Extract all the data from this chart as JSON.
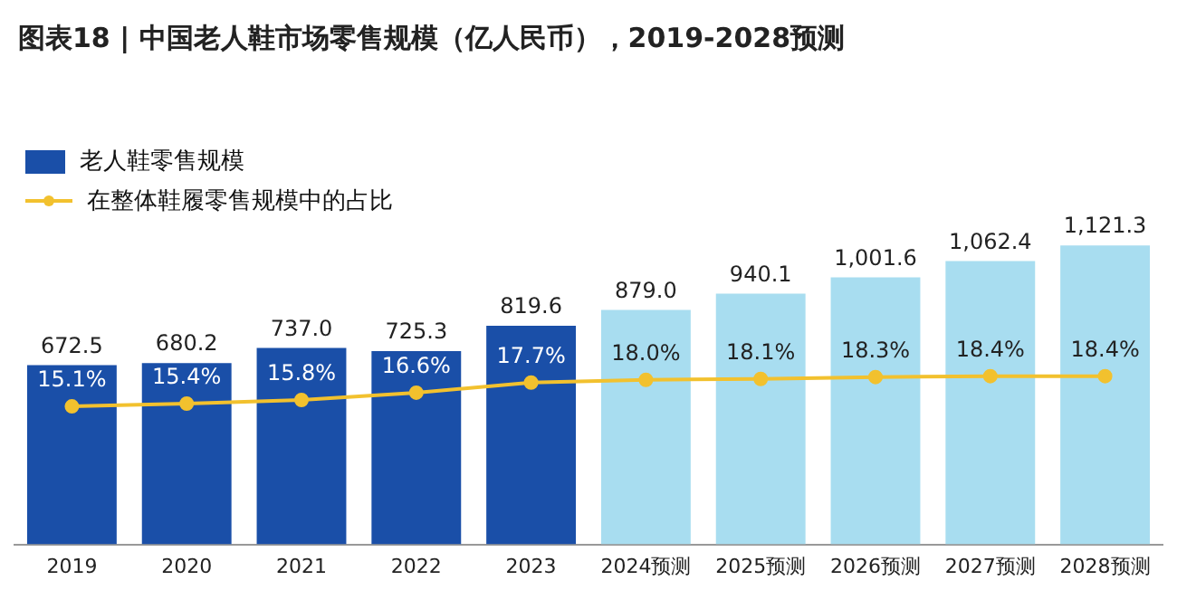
{
  "chart_data": {
    "type": "bar",
    "title": "图表18 | 中国老人鞋市场零售规模（亿人民币），2019-2028预测",
    "categories": [
      "2019",
      "2020",
      "2021",
      "2022",
      "2023",
      "2024预测",
      "2025预测",
      "2026预测",
      "2027预测",
      "2028预测"
    ],
    "series": [
      {
        "name": "老人鞋零售规模",
        "color": "#1a4fa8",
        "colors": [
          "#1a4fa8",
          "#1a4fa8",
          "#1a4fa8",
          "#1a4fa8",
          "#1a4fa8",
          "#a8ddf0",
          "#a8ddf0",
          "#a8ddf0",
          "#a8ddf0",
          "#a8ddf0"
        ],
        "values": [
          672.5,
          680.2,
          737.0,
          725.3,
          819.6,
          879.0,
          940.1,
          1001.6,
          1062.4,
          1121.3
        ],
        "value_labels": [
          "672.5",
          "680.2",
          "737.0",
          "725.3",
          "819.6",
          "879.0",
          "940.1",
          "1,001.6",
          "1,062.4",
          "1,121.3"
        ]
      },
      {
        "name": "在整体鞋履零售规模中的占比",
        "type": "line",
        "axis": "y2",
        "color": "#f2c12e",
        "values": [
          15.1,
          15.4,
          15.8,
          16.6,
          17.7,
          18.0,
          18.1,
          18.3,
          18.4,
          18.4
        ],
        "value_labels": [
          "15.1%",
          "15.4%",
          "15.8%",
          "16.6%",
          "17.7%",
          "18.0%",
          "18.1%",
          "18.3%",
          "18.4%",
          "18.4%"
        ]
      }
    ],
    "legend": "top left",
    "marker": "circle",
    "grid": false,
    "tick_labels": "x"
  }
}
